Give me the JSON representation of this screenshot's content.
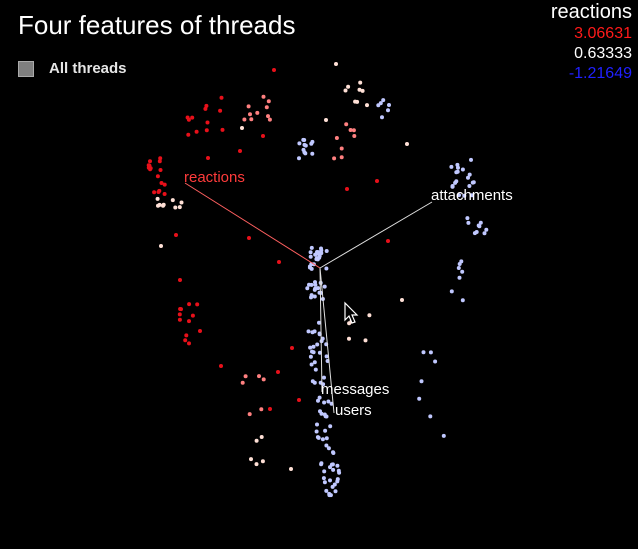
{
  "chart_data": {
    "type": "scatter",
    "title": "Four features of threads",
    "legend": {
      "label": "All threads",
      "placement": "top-left"
    },
    "color_scale": {
      "feature": "reactions",
      "max": "3.06631",
      "mid": "0.63333",
      "min": "-1.21649",
      "colors": {
        "max": "#ff0000",
        "mid": "#ffffff",
        "min": "#0000ff"
      }
    },
    "axes": [
      {
        "label": "reactions",
        "color": "#ff3b3b"
      },
      {
        "label": "attachments",
        "color": "#ffffff"
      },
      {
        "label": "messages",
        "color": "#ffffff"
      },
      {
        "label": "users",
        "color": "#ffffff"
      }
    ],
    "point_colors": {
      "hot": "#e8101a",
      "warm": "#ff8080",
      "pale": "#ffe0d6",
      "cool": "#c0c8ff"
    }
  }
}
